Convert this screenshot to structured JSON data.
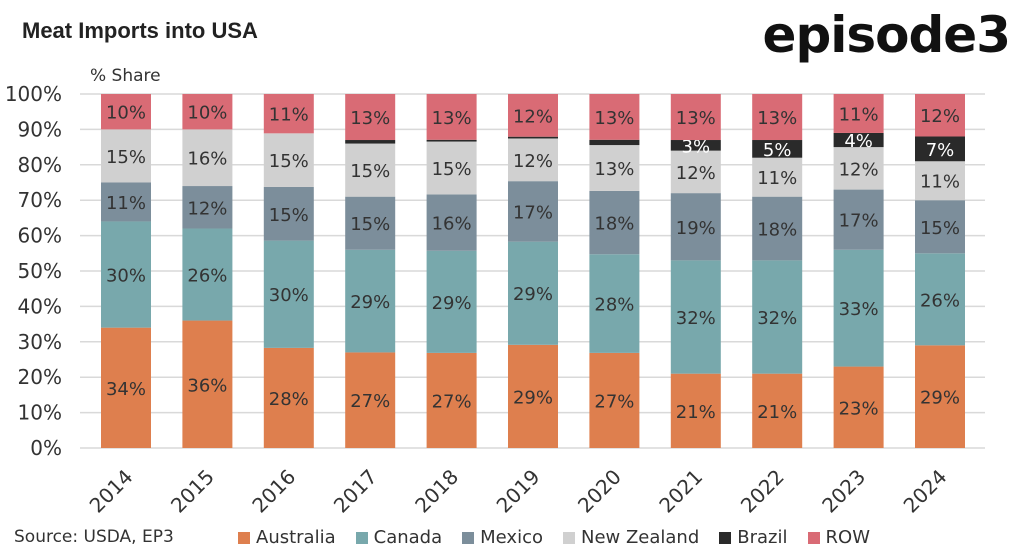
{
  "title": "Meat Imports into USA",
  "logo": "episode3",
  "source": "Source: USDA, EP3",
  "chart_data": {
    "type": "stacked-bar",
    "ylabel": "% Share",
    "ylim": [
      0,
      100
    ],
    "yticks": [
      "0%",
      "10%",
      "20%",
      "30%",
      "40%",
      "50%",
      "60%",
      "70%",
      "80%",
      "90%",
      "100%"
    ],
    "grid": true,
    "legend_position": "bottom",
    "categories": [
      "2014",
      "2015",
      "2016",
      "2017",
      "2018",
      "2019",
      "2020",
      "2021",
      "2022",
      "2023",
      "2024"
    ],
    "series": [
      {
        "name": "Australia",
        "color": "#DE7F4E",
        "values": [
          34,
          36,
          28,
          27,
          27,
          29,
          27,
          21,
          21,
          23,
          29
        ]
      },
      {
        "name": "Canada",
        "color": "#78A8AC",
        "values": [
          30,
          26,
          30,
          29,
          29,
          29,
          28,
          32,
          32,
          33,
          26
        ]
      },
      {
        "name": "Mexico",
        "color": "#7C8E9B",
        "values": [
          11,
          12,
          15,
          15,
          16,
          17,
          18,
          19,
          18,
          17,
          15
        ]
      },
      {
        "name": "New Zealand",
        "color": "#D0D0D0",
        "values": [
          15,
          16,
          15,
          15,
          15,
          12,
          13,
          12,
          11,
          12,
          11
        ]
      },
      {
        "name": "Brazil",
        "color": "#2A2A2A",
        "values": [
          0,
          0,
          0,
          1,
          0.5,
          0.5,
          1.5,
          3,
          5,
          4,
          7
        ]
      },
      {
        "name": "ROW",
        "color": "#D96B75",
        "values": [
          10,
          10,
          11,
          13,
          13,
          12,
          13,
          13,
          13,
          11,
          12
        ]
      }
    ]
  }
}
